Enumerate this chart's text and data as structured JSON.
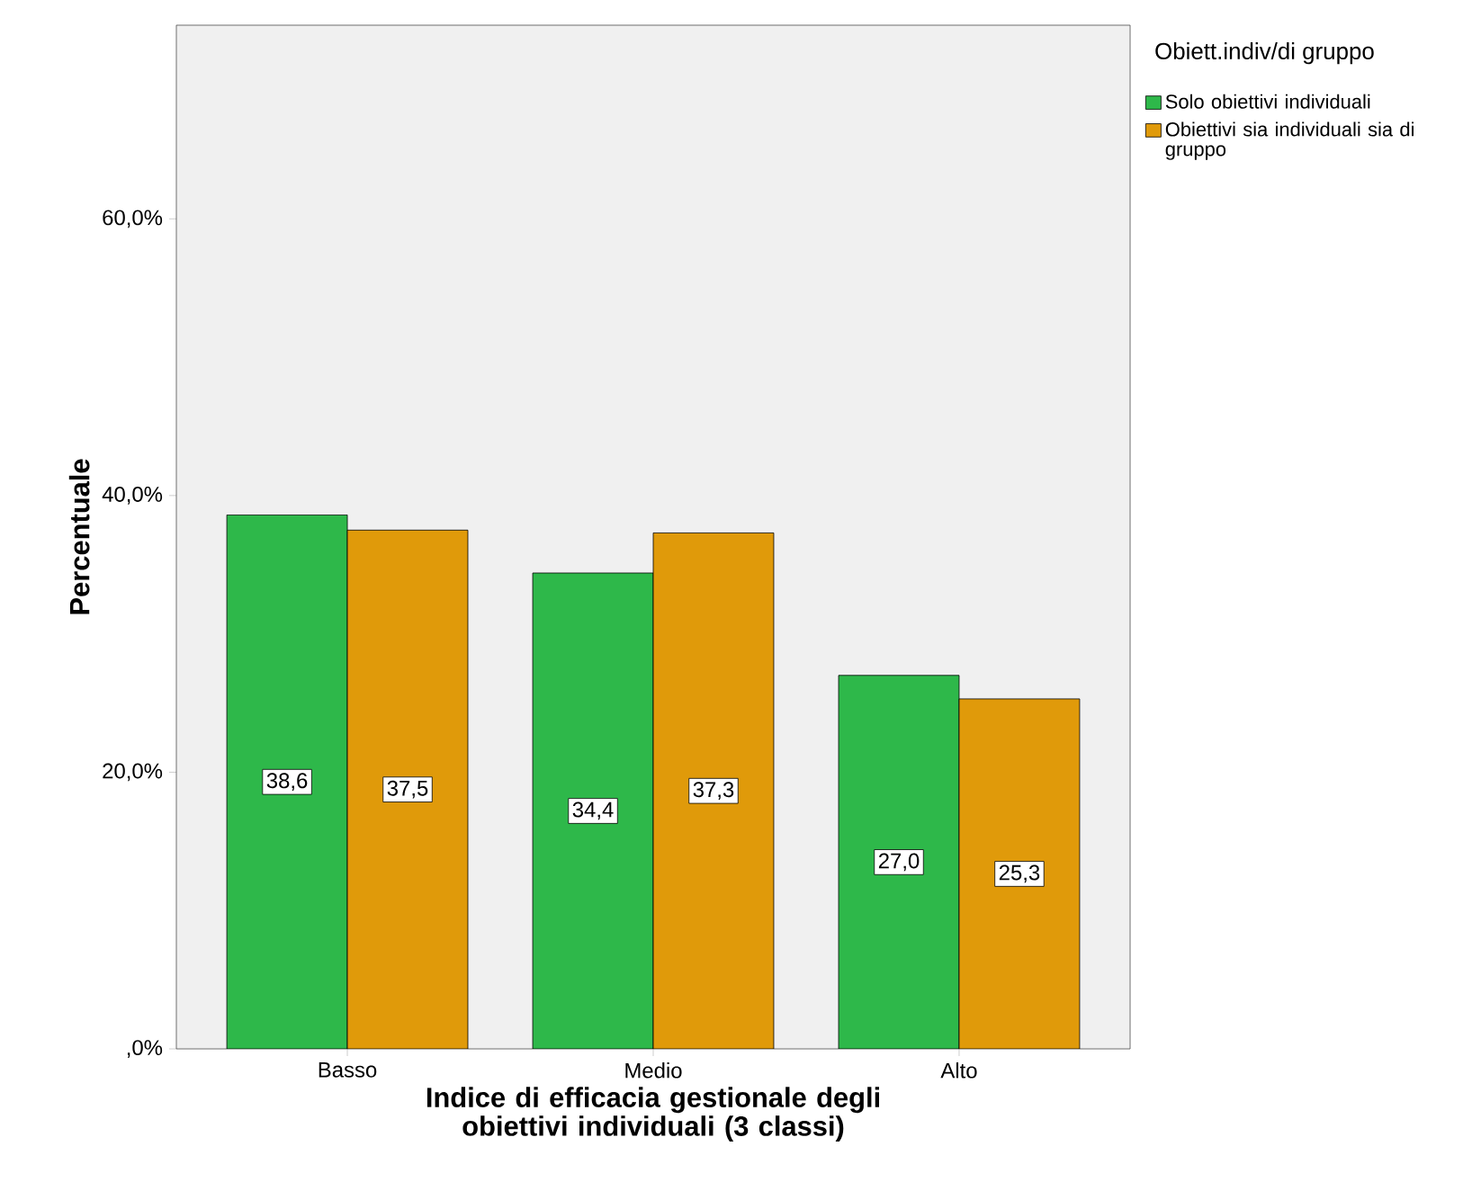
{
  "chart_data": {
    "type": "bar",
    "xlabel": "Indice di efficacia gestionale degli obiettivi individuali (3 classi)",
    "ylabel": "Percentuale",
    "legend_title": "Obiett.indiv/di gruppo",
    "categories": [
      "Basso",
      "Medio",
      "Alto"
    ],
    "series": [
      {
        "name": "Solo obiettivi individuali",
        "color": "#2eb84a",
        "values": [
          38.6,
          34.4,
          27.0
        ],
        "value_labels": [
          "38,6",
          "34,4",
          "27,0"
        ]
      },
      {
        "name": "Obiettivi sia individuali sia di gruppo",
        "color": "#e09a0a",
        "values": [
          37.5,
          37.3,
          25.3
        ],
        "value_labels": [
          "37,5",
          "37,3",
          "25,3"
        ]
      }
    ],
    "ylim": [
      0,
      74
    ],
    "yticks": [
      {
        "value": 0,
        "label": ",0%"
      },
      {
        "value": 20,
        "label": "20,0%"
      },
      {
        "value": 40,
        "label": "40,0%"
      },
      {
        "value": 60,
        "label": "60,0%"
      }
    ],
    "grid": false,
    "legend": "right"
  }
}
